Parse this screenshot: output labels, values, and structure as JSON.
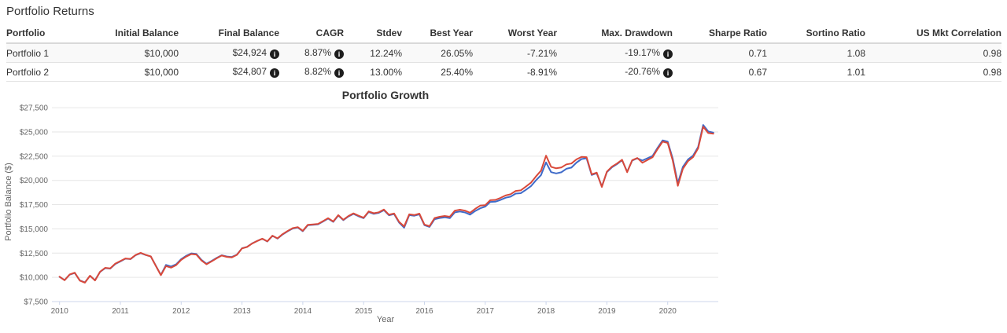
{
  "page": {
    "title": "Portfolio Returns"
  },
  "table": {
    "columns": [
      "Portfolio",
      "Initial Balance",
      "Final Balance",
      "CAGR",
      "Stdev",
      "Best Year",
      "Worst Year",
      "Max. Drawdown",
      "Sharpe Ratio",
      "Sortino Ratio",
      "US Mkt Correlation"
    ],
    "rows": [
      {
        "label": "Portfolio 1",
        "cells": [
          {
            "t": "$10,000"
          },
          {
            "t": "$24,924",
            "info": true
          },
          {
            "t": "8.87%",
            "info": true
          },
          {
            "t": "12.24%"
          },
          {
            "t": "26.05%"
          },
          {
            "t": "-7.21%"
          },
          {
            "t": "-19.17%",
            "info": true
          },
          {
            "t": "0.71"
          },
          {
            "t": "1.08"
          },
          {
            "t": "0.98"
          }
        ]
      },
      {
        "label": "Portfolio 2",
        "cells": [
          {
            "t": "$10,000"
          },
          {
            "t": "$24,807",
            "info": true
          },
          {
            "t": "8.82%",
            "info": true
          },
          {
            "t": "13.00%"
          },
          {
            "t": "25.40%"
          },
          {
            "t": "-8.91%"
          },
          {
            "t": "-20.76%",
            "info": true
          },
          {
            "t": "0.67"
          },
          {
            "t": "1.01"
          },
          {
            "t": "0.98"
          }
        ]
      }
    ],
    "info_icon_glyph": "i"
  },
  "chart_data": {
    "type": "line",
    "title": "Portfolio Growth",
    "xlabel": "Year",
    "ylabel": "Portfolio Balance ($)",
    "grid": "horizontal",
    "legend": "none",
    "x_unit": "month",
    "x_start": "2010-01",
    "x_end": "2020-10",
    "x_tick_labels": [
      "2010",
      "2011",
      "2012",
      "2013",
      "2014",
      "2015",
      "2016",
      "2017",
      "2018",
      "2019",
      "2020"
    ],
    "ylim": [
      7500,
      27500
    ],
    "y_tick_step": 2500,
    "axis_line_color": "#ccd6eb",
    "gridline_color": "#e6e6e6",
    "tick_text_color": "#666666",
    "title_color": "#333333",
    "series": [
      {
        "name": "Portfolio 1",
        "color": "#3f6bc9",
        "values": [
          10050,
          9720,
          10280,
          10450,
          9680,
          9480,
          10150,
          9700,
          10560,
          10950,
          10900,
          11380,
          11640,
          11920,
          11880,
          12280,
          12500,
          12300,
          12150,
          11200,
          10250,
          11280,
          11120,
          11340,
          11880,
          12220,
          12470,
          12410,
          11800,
          11400,
          11700,
          12000,
          12280,
          12150,
          12100,
          12350,
          13000,
          13150,
          13500,
          13750,
          13980,
          13700,
          14280,
          14000,
          14420,
          14750,
          15030,
          15140,
          14760,
          15380,
          15420,
          15470,
          15760,
          16060,
          15720,
          16380,
          15900,
          16280,
          16550,
          16300,
          16100,
          16740,
          16550,
          16650,
          16930,
          16400,
          16530,
          15650,
          15120,
          16420,
          16350,
          16500,
          15380,
          15200,
          16000,
          16120,
          16190,
          16100,
          16700,
          16790,
          16690,
          16470,
          16840,
          17120,
          17300,
          17780,
          17800,
          17980,
          18210,
          18320,
          18640,
          18680,
          19020,
          19400,
          20000,
          20550,
          21850,
          20850,
          20720,
          20830,
          21200,
          21320,
          21840,
          22200,
          22280,
          20560,
          20740,
          19380,
          20850,
          21350,
          21680,
          22080,
          20900,
          22050,
          22280,
          22050,
          22280,
          22520,
          23350,
          24130,
          24000,
          22250,
          19710,
          21400,
          22150,
          22550,
          23450,
          25720,
          25050,
          24924
        ]
      },
      {
        "name": "Portfolio 2",
        "color": "#d9493a",
        "values": [
          10070,
          9700,
          10300,
          10480,
          9660,
          9450,
          10170,
          9680,
          10580,
          10980,
          10930,
          11420,
          11680,
          11950,
          11900,
          12300,
          12530,
          12320,
          12160,
          11180,
          10220,
          11160,
          11000,
          11260,
          11800,
          12140,
          12400,
          12350,
          11740,
          11350,
          11650,
          11960,
          12250,
          12110,
          12060,
          12320,
          12980,
          13130,
          13490,
          13750,
          13990,
          13710,
          14300,
          14020,
          14450,
          14780,
          15070,
          15180,
          14800,
          15420,
          15460,
          15510,
          15800,
          16100,
          15760,
          16420,
          15940,
          16330,
          16600,
          16350,
          16150,
          16800,
          16610,
          16710,
          16990,
          16460,
          16590,
          15720,
          15250,
          16500,
          16430,
          16570,
          15450,
          15280,
          16120,
          16250,
          16330,
          16250,
          16880,
          16980,
          16880,
          16660,
          17060,
          17400,
          17450,
          17960,
          17990,
          18190,
          18440,
          18570,
          18910,
          18970,
          19350,
          19760,
          20400,
          21000,
          22550,
          21400,
          21250,
          21330,
          21650,
          21740,
          22170,
          22420,
          22400,
          20620,
          20800,
          19330,
          20900,
          21420,
          21740,
          22130,
          20840,
          22090,
          22310,
          21820,
          22100,
          22380,
          23220,
          24000,
          23860,
          22050,
          19440,
          21200,
          21980,
          22400,
          23300,
          25540,
          24880,
          24807
        ]
      }
    ]
  }
}
